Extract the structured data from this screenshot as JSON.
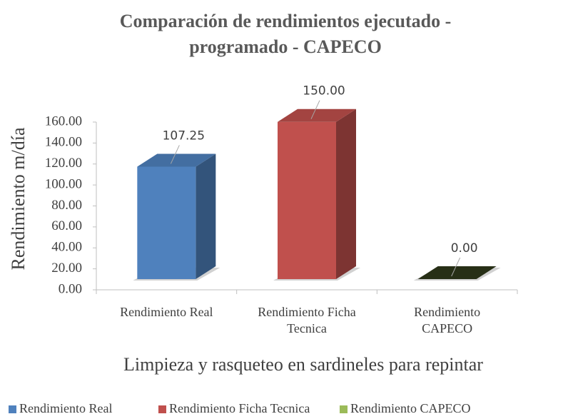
{
  "chart_data": {
    "type": "bar3d",
    "title": "Comparación de rendimientos ejecutado - programado - CAPECO",
    "ylabel": "Rendimiento m/día",
    "xlabel": "Limpieza y rasqueteo en sardineles para repintar",
    "categories": [
      "Rendimiento Real",
      "Rendimiento Ficha Tecnica",
      "Rendimiento CAPECO"
    ],
    "values": [
      107.25,
      150,
      0
    ],
    "value_labels": [
      "107.25",
      "150.00",
      "0.00"
    ],
    "colors": [
      "#4f81bd",
      "#c0504d",
      "#9bbb59"
    ],
    "ylim": [
      0,
      160
    ],
    "yticks": [
      {
        "value": 0,
        "label": "0.00"
      },
      {
        "value": 20,
        "label": "20.00"
      },
      {
        "value": 40,
        "label": "40.00"
      },
      {
        "value": 60,
        "label": "60.00"
      },
      {
        "value": 80,
        "label": "80.00"
      },
      {
        "value": 100,
        "label": "100.00"
      },
      {
        "value": 120,
        "label": "120.00"
      },
      {
        "value": 140,
        "label": "140.00"
      },
      {
        "value": 160,
        "label": "160.00"
      }
    ],
    "legend": "bottom"
  }
}
